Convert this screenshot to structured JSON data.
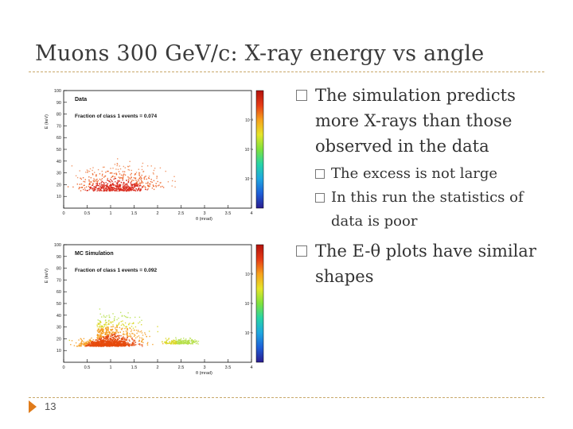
{
  "slide": {
    "title": "Muons 300 GeV/c: X-ray energy vs angle",
    "page_number": "13",
    "accent_color": "#e07b1a",
    "divider_color": "#c9a86a"
  },
  "bullets": [
    {
      "text": "The simulation predicts more X-rays than those observed in the data",
      "sub": [
        "The excess is not large",
        "In this run the statistics of data is poor"
      ]
    },
    {
      "text": "The E-θ plots have similar shapes",
      "sub": []
    }
  ],
  "chart_data": [
    {
      "type": "heatmap",
      "title": "Data",
      "annotation": "Fraction of class 1 events = 0.074",
      "xlabel": "θ (mrad)",
      "ylabel": "E (keV)",
      "xlim": [
        0,
        4
      ],
      "ylim": [
        0,
        100
      ],
      "x_ticks": [
        "0",
        "0.5",
        "1",
        "1.5",
        "2",
        "2.5",
        "3",
        "3.5",
        "4"
      ],
      "y_ticks": [
        "10",
        "20",
        "30",
        "40",
        "50",
        "60",
        "70",
        "80",
        "90",
        "100"
      ],
      "colorbar_labels": [
        "10⁻⁵",
        "10⁻⁴",
        "10⁻³"
      ]
    },
    {
      "type": "heatmap",
      "title": "MC Simulation",
      "annotation": "Fraction of class 1 events = 0.092",
      "xlabel": "θ (mrad)",
      "ylabel": "E (keV)",
      "xlim": [
        0,
        4
      ],
      "ylim": [
        0,
        100
      ],
      "x_ticks": [
        "0",
        "0.5",
        "1",
        "1.5",
        "2",
        "2.5",
        "3",
        "3.5",
        "4"
      ],
      "y_ticks": [
        "10",
        "20",
        "30",
        "40",
        "50",
        "60",
        "70",
        "80",
        "90",
        "100"
      ],
      "colorbar_labels": [
        "10⁻⁵",
        "10⁻⁴",
        "10⁻³"
      ]
    }
  ]
}
